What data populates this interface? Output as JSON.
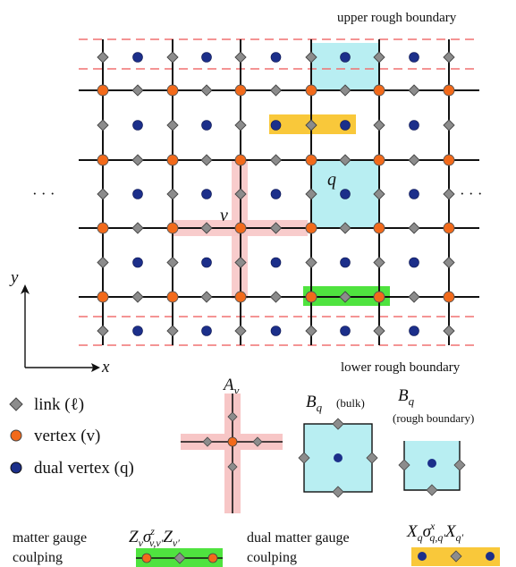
{
  "labels": {
    "upper_boundary": "upper rough boundary",
    "lower_boundary": "lower rough boundary",
    "ellipsis_left": "· · ·",
    "ellipsis_right": "· · ·",
    "v": "v",
    "q": "q",
    "axis_x": "x",
    "axis_y": "y"
  },
  "legend": {
    "link": "link (ℓ)",
    "vertex": "vertex (v)",
    "dual_vertex": "dual vertex (q)"
  },
  "operators": {
    "av": {
      "main": "A",
      "sub": "v"
    },
    "bq_bulk": {
      "main": "B",
      "sub": "q",
      "note": "(bulk)"
    },
    "bq_rough": {
      "main": "B",
      "sub": "q",
      "note": "(rough  boundary)"
    }
  },
  "coupling": {
    "matter_line1": "matter gauge",
    "matter_line2": "coulping",
    "matter_formula": "Z_v σ^z_{v,v'} Z_{v'}",
    "dual_line1": "dual matter gauge",
    "dual_line2": "coulping",
    "dual_formula": "X_q σ^x_{q,q'} X_{q'}"
  },
  "colors": {
    "vertex": "#f26a1b",
    "dual_vertex": "#1c2f8a",
    "link": "#8c8c8c",
    "boundary_dash": "#f07070",
    "plaquette": "#b8eef2",
    "star": "#f7c6c6",
    "matter_coupling": "#4fe33f",
    "dual_coupling": "#f9c83a"
  }
}
